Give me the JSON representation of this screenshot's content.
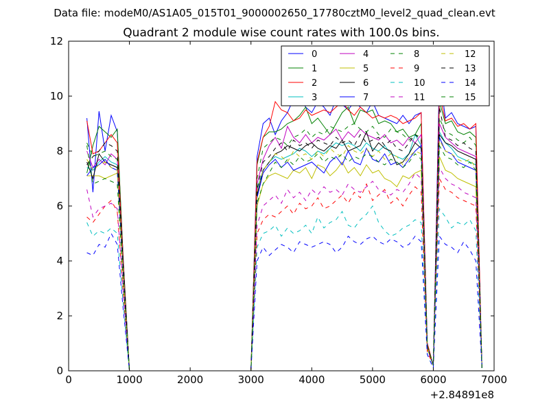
{
  "chart_data": {
    "type": "line",
    "suptitle": "Data file: modeM0/AS1A05_015T01_9000002650_17780cztM0_level2_quad_clean.evt",
    "title": "Quadrant 2 module wise count rates with 100.0s bins.",
    "xlabel": "",
    "ylabel": "",
    "x_offset_label": "+2.84891e8",
    "xlim": [
      0,
      7000
    ],
    "ylim": [
      0,
      12
    ],
    "xticks": [
      0,
      1000,
      2000,
      3000,
      4000,
      5000,
      6000,
      7000
    ],
    "yticks": [
      0,
      2,
      4,
      6,
      8,
      10,
      12
    ],
    "legend_location": "upper right",
    "legend_columns": 4,
    "x": [
      300,
      400,
      500,
      600,
      700,
      800,
      900,
      1000,
      1100,
      1200,
      1300,
      1400,
      1500,
      1600,
      1700,
      1800,
      1900,
      2000,
      2100,
      2200,
      2300,
      2400,
      2500,
      2600,
      2700,
      2800,
      2900,
      3000,
      3100,
      3200,
      3300,
      3400,
      3500,
      3600,
      3700,
      3800,
      3900,
      4000,
      4100,
      4200,
      4300,
      4400,
      4500,
      4600,
      4700,
      4800,
      4900,
      5000,
      5100,
      5200,
      5300,
      5400,
      5500,
      5600,
      5700,
      5800,
      5900,
      6000,
      6100,
      6200,
      6300,
      6400,
      6500,
      6600,
      6700,
      6800
    ],
    "series": [
      {
        "name": "0",
        "color": "#0000ff",
        "dash": "solid",
        "values": [
          9.2,
          6.5,
          9.45,
          8.0,
          9.3,
          8.7,
          4.0,
          0,
          0,
          0,
          0,
          0,
          0,
          0,
          0,
          0,
          0,
          0,
          0,
          0,
          0,
          0,
          0,
          0,
          0,
          0,
          0,
          0,
          7.8,
          9.0,
          9.2,
          8.6,
          9.1,
          9.4,
          9.9,
          10.0,
          9.6,
          9.4,
          9.8,
          9.6,
          9.3,
          9.9,
          9.7,
          9.5,
          9.8,
          9.6,
          9.4,
          9.8,
          9.3,
          9.2,
          9.1,
          9.0,
          9.3,
          9.0,
          9.3,
          9.4,
          1.0,
          0.2,
          10.8,
          9.2,
          9.4,
          9.0,
          8.9,
          8.8,
          8.9,
          0.1
        ]
      },
      {
        "name": "1",
        "color": "#008000",
        "dash": "solid",
        "values": [
          7.2,
          8.2,
          8.9,
          8.7,
          8.5,
          8.8,
          4.0,
          0,
          0,
          0,
          0,
          0,
          0,
          0,
          0,
          0,
          0,
          0,
          0,
          0,
          0,
          0,
          0,
          0,
          0,
          0,
          0,
          0,
          7.5,
          8.5,
          8.7,
          8.7,
          8.8,
          9.0,
          9.1,
          9.3,
          9.6,
          9.0,
          9.2,
          8.9,
          8.6,
          9.0,
          9.4,
          9.6,
          9.0,
          9.5,
          9.4,
          9.5,
          9.0,
          9.1,
          9.0,
          8.7,
          8.8,
          8.5,
          8.6,
          9.0,
          1.0,
          0.2,
          9.8,
          9.0,
          9.1,
          8.7,
          8.6,
          8.7,
          8.5,
          0.1
        ]
      },
      {
        "name": "2",
        "color": "#ff0000",
        "dash": "solid",
        "values": [
          9.1,
          7.9,
          8.0,
          8.3,
          8.6,
          8.3,
          3.9,
          0,
          0,
          0,
          0,
          0,
          0,
          0,
          0,
          0,
          0,
          0,
          0,
          0,
          0,
          0,
          0,
          0,
          0,
          0,
          0,
          0,
          7.6,
          8.5,
          8.9,
          9.8,
          9.5,
          9.4,
          9.1,
          9.2,
          9.5,
          9.3,
          9.4,
          9.5,
          9.4,
          9.6,
          9.8,
          9.5,
          9.3,
          9.6,
          9.4,
          9.2,
          9.3,
          9.2,
          9.3,
          9.2,
          9.0,
          9.1,
          9.2,
          9.4,
          1.0,
          0.2,
          10.1,
          9.1,
          9.2,
          8.9,
          9.0,
          8.8,
          9.0,
          0.1
        ]
      },
      {
        "name": "3",
        "color": "#00bfbf",
        "dash": "solid",
        "values": [
          7.4,
          7.3,
          7.6,
          7.8,
          7.6,
          7.5,
          3.6,
          0,
          0,
          0,
          0,
          0,
          0,
          0,
          0,
          0,
          0,
          0,
          0,
          0,
          0,
          0,
          0,
          0,
          0,
          0,
          0,
          0,
          6.6,
          7.3,
          7.6,
          7.8,
          7.7,
          7.8,
          7.9,
          8.1,
          8.0,
          7.8,
          8.0,
          7.9,
          8.1,
          8.3,
          8.2,
          8.3,
          8.2,
          8.0,
          8.3,
          8.1,
          8.0,
          8.2,
          7.9,
          7.8,
          7.7,
          7.9,
          8.6,
          8.2,
          0.9,
          0.2,
          8.7,
          8.3,
          8.1,
          7.8,
          7.7,
          7.6,
          7.5,
          0.1
        ]
      },
      {
        "name": "4",
        "color": "#bf00bf",
        "dash": "solid",
        "values": [
          8.0,
          7.4,
          7.7,
          7.5,
          7.9,
          7.7,
          3.7,
          0,
          0,
          0,
          0,
          0,
          0,
          0,
          0,
          0,
          0,
          0,
          0,
          0,
          0,
          0,
          0,
          0,
          0,
          0,
          0,
          0,
          6.8,
          7.7,
          8.2,
          8.5,
          8.1,
          8.9,
          8.5,
          8.3,
          8.6,
          8.3,
          8.5,
          8.4,
          8.6,
          8.8,
          8.4,
          8.7,
          8.5,
          8.8,
          8.6,
          8.5,
          8.4,
          8.6,
          8.3,
          8.4,
          8.2,
          8.5,
          8.3,
          8.6,
          0.9,
          0.2,
          9.0,
          8.5,
          8.3,
          8.1,
          8.0,
          7.9,
          7.8,
          0.1
        ]
      },
      {
        "name": "5",
        "color": "#bfbf00",
        "dash": "solid",
        "values": [
          7.1,
          7.1,
          7.1,
          7.0,
          7.1,
          7.2,
          3.4,
          0,
          0,
          0,
          0,
          0,
          0,
          0,
          0,
          0,
          0,
          0,
          0,
          0,
          0,
          0,
          0,
          0,
          0,
          0,
          0,
          0,
          6.0,
          6.8,
          7.1,
          7.2,
          7.1,
          7.0,
          7.3,
          7.2,
          7.4,
          7.0,
          7.5,
          7.4,
          7.1,
          7.3,
          7.6,
          7.2,
          7.4,
          7.1,
          7.5,
          7.2,
          7.3,
          7.0,
          6.9,
          6.7,
          7.1,
          7.0,
          7.2,
          7.3,
          0.8,
          0.2,
          7.8,
          7.3,
          7.2,
          7.0,
          6.9,
          6.8,
          6.7,
          0.1
        ]
      },
      {
        "name": "6",
        "color": "#000000",
        "dash": "solid",
        "values": [
          7.6,
          7.0,
          7.9,
          7.6,
          7.5,
          7.4,
          3.6,
          0,
          0,
          0,
          0,
          0,
          0,
          0,
          0,
          0,
          0,
          0,
          0,
          0,
          0,
          0,
          0,
          0,
          0,
          0,
          0,
          0,
          6.4,
          7.3,
          7.6,
          7.9,
          8.0,
          8.2,
          8.1,
          8.0,
          8.2,
          8.3,
          8.1,
          8.0,
          8.2,
          8.1,
          8.4,
          8.0,
          8.1,
          8.2,
          8.7,
          8.0,
          8.3,
          8.1,
          8.0,
          7.5,
          7.6,
          7.9,
          8.3,
          8.1,
          0.9,
          0.2,
          8.6,
          8.3,
          8.2,
          8.0,
          7.9,
          7.8,
          7.7,
          0.1
        ]
      },
      {
        "name": "7",
        "color": "#0000ff",
        "dash": "solid",
        "values": [
          7.1,
          7.4,
          7.5,
          7.7,
          7.4,
          7.3,
          3.5,
          0,
          0,
          0,
          0,
          0,
          0,
          0,
          0,
          0,
          0,
          0,
          0,
          0,
          0,
          0,
          0,
          0,
          0,
          0,
          0,
          0,
          6.3,
          7.2,
          7.5,
          7.7,
          7.4,
          7.6,
          7.3,
          7.4,
          7.5,
          7.6,
          7.4,
          7.2,
          7.6,
          7.8,
          7.5,
          8.0,
          7.6,
          7.5,
          8.1,
          7.7,
          7.6,
          7.9,
          7.5,
          7.6,
          7.4,
          7.7,
          8.0,
          8.2,
          0.9,
          0.2,
          8.5,
          8.0,
          7.9,
          7.6,
          7.5,
          7.4,
          7.3,
          0.1
        ]
      },
      {
        "name": "8",
        "color": "#008000",
        "dash": "dashed",
        "values": [
          8.3,
          7.8,
          7.9,
          8.0,
          7.8,
          7.7,
          3.7,
          0,
          0,
          0,
          0,
          0,
          0,
          0,
          0,
          0,
          0,
          0,
          0,
          0,
          0,
          0,
          0,
          0,
          0,
          0,
          0,
          0,
          7.0,
          8.1,
          8.3,
          8.5,
          8.4,
          8.2,
          8.5,
          8.6,
          8.8,
          8.5,
          8.7,
          8.6,
          8.9,
          8.8,
          8.7,
          8.9,
          9.0,
          8.8,
          8.7,
          8.9,
          8.6,
          8.5,
          8.8,
          8.7,
          8.6,
          8.4,
          8.6,
          8.5,
          0.9,
          0.2,
          9.2,
          8.7,
          8.6,
          8.4,
          8.3,
          8.5,
          8.2,
          0.1
        ]
      },
      {
        "name": "9",
        "color": "#ff0000",
        "dash": "dashed",
        "values": [
          5.6,
          5.4,
          5.7,
          6.0,
          6.2,
          5.8,
          2.8,
          0,
          0,
          0,
          0,
          0,
          0,
          0,
          0,
          0,
          0,
          0,
          0,
          0,
          0,
          0,
          0,
          0,
          0,
          0,
          0,
          0,
          5.0,
          5.5,
          5.7,
          5.6,
          5.8,
          6.0,
          5.7,
          6.1,
          5.9,
          6.0,
          6.3,
          5.9,
          6.0,
          6.2,
          6.4,
          6.1,
          6.5,
          6.3,
          6.8,
          6.2,
          6.4,
          6.6,
          6.1,
          6.3,
          6.0,
          6.4,
          6.7,
          6.5,
          0.7,
          0.2,
          7.0,
          6.6,
          6.5,
          6.3,
          6.2,
          6.1,
          6.0,
          0.1
        ]
      },
      {
        "name": "10",
        "color": "#00bfbf",
        "dash": "dashed",
        "values": [
          5.4,
          4.9,
          5.1,
          5.0,
          5.2,
          5.0,
          2.4,
          0,
          0,
          0,
          0,
          0,
          0,
          0,
          0,
          0,
          0,
          0,
          0,
          0,
          0,
          0,
          0,
          0,
          0,
          0,
          0,
          0,
          4.5,
          5.0,
          5.1,
          5.3,
          4.9,
          5.2,
          5.0,
          5.1,
          5.3,
          5.0,
          5.6,
          5.2,
          5.4,
          5.5,
          5.8,
          5.3,
          5.2,
          5.5,
          5.7,
          6.0,
          5.4,
          5.1,
          4.9,
          5.0,
          5.2,
          5.3,
          5.5,
          5.4,
          0.6,
          0.1,
          5.9,
          5.6,
          5.2,
          5.4,
          5.3,
          5.5,
          5.1,
          0.1
        ]
      },
      {
        "name": "11",
        "color": "#bf00bf",
        "dash": "dashed",
        "values": [
          6.6,
          5.6,
          5.9,
          6.0,
          6.1,
          5.9,
          2.9,
          0,
          0,
          0,
          0,
          0,
          0,
          0,
          0,
          0,
          0,
          0,
          0,
          0,
          0,
          0,
          0,
          0,
          0,
          0,
          0,
          0,
          5.3,
          6.0,
          6.2,
          6.4,
          6.1,
          6.6,
          6.3,
          6.5,
          6.2,
          6.6,
          6.4,
          6.7,
          6.5,
          6.6,
          6.4,
          6.8,
          6.6,
          6.5,
          6.7,
          6.9,
          6.6,
          6.5,
          6.4,
          6.6,
          6.5,
          6.8,
          7.2,
          7.0,
          0.8,
          0.2,
          7.4,
          7.0,
          6.8,
          6.7,
          6.5,
          6.4,
          6.3,
          0.1
        ]
      },
      {
        "name": "12",
        "color": "#bfbf00",
        "dash": "dashed",
        "values": [
          7.7,
          7.3,
          7.5,
          7.6,
          7.4,
          7.3,
          3.5,
          0,
          0,
          0,
          0,
          0,
          0,
          0,
          0,
          0,
          0,
          0,
          0,
          0,
          0,
          0,
          0,
          0,
          0,
          0,
          0,
          0,
          6.5,
          7.3,
          7.6,
          7.9,
          7.8,
          7.6,
          8.0,
          7.8,
          7.9,
          7.7,
          8.0,
          7.8,
          8.1,
          7.9,
          7.8,
          8.2,
          8.0,
          7.9,
          8.1,
          7.8,
          8.0,
          7.7,
          7.9,
          7.8,
          7.5,
          7.8,
          8.0,
          7.9,
          0.9,
          0.2,
          8.4,
          8.0,
          7.9,
          7.7,
          7.6,
          7.7,
          7.4,
          0.1
        ]
      },
      {
        "name": "13",
        "color": "#000000",
        "dash": "dashed",
        "values": [
          7.5,
          7.8,
          8.0,
          8.3,
          8.2,
          8.0,
          3.8,
          0,
          0,
          0,
          0,
          0,
          0,
          0,
          0,
          0,
          0,
          0,
          0,
          0,
          0,
          0,
          0,
          0,
          0,
          0,
          0,
          0,
          6.6,
          7.6,
          7.8,
          8.1,
          8.3,
          8.0,
          8.4,
          8.2,
          8.3,
          8.1,
          8.4,
          8.3,
          8.2,
          8.5,
          8.3,
          8.4,
          8.2,
          8.6,
          8.3,
          8.4,
          8.5,
          8.2,
          8.4,
          8.1,
          8.0,
          8.3,
          8.6,
          8.4,
          0.9,
          0.2,
          9.6,
          8.5,
          8.4,
          8.2,
          8.3,
          8.1,
          8.0,
          0.1
        ]
      },
      {
        "name": "14",
        "color": "#0000ff",
        "dash": "dashed",
        "values": [
          4.3,
          4.2,
          4.6,
          4.5,
          5.0,
          4.6,
          2.2,
          0,
          0,
          0,
          0,
          0,
          0,
          0,
          0,
          0,
          0,
          0,
          0,
          0,
          0,
          0,
          0,
          0,
          0,
          0,
          0,
          0,
          4.0,
          4.5,
          4.2,
          4.4,
          4.6,
          4.5,
          4.3,
          4.7,
          4.6,
          4.5,
          4.6,
          4.7,
          4.6,
          4.3,
          4.5,
          4.9,
          4.7,
          4.6,
          4.8,
          4.9,
          4.7,
          4.6,
          4.8,
          4.7,
          4.5,
          4.6,
          4.9,
          4.7,
          0.6,
          0.1,
          4.9,
          4.6,
          4.5,
          4.3,
          4.7,
          4.4,
          4.0,
          0.1
        ]
      },
      {
        "name": "15",
        "color": "#008000",
        "dash": "dashed",
        "values": [
          8.2,
          6.8,
          6.9,
          7.0,
          6.9,
          6.8,
          3.2,
          0,
          0,
          0,
          0,
          0,
          0,
          0,
          0,
          0,
          0,
          0,
          0,
          0,
          0,
          0,
          0,
          0,
          0,
          0,
          0,
          0,
          6.1,
          6.8,
          7.2,
          7.6,
          7.4,
          7.7,
          7.5,
          7.8,
          7.6,
          7.7,
          7.9,
          7.6,
          7.8,
          7.7,
          7.9,
          7.6,
          7.8,
          7.7,
          7.9,
          7.8,
          7.6,
          7.5,
          7.7,
          7.6,
          7.4,
          7.6,
          7.9,
          7.7,
          0.9,
          0.2,
          8.2,
          7.8,
          7.7,
          7.5,
          7.4,
          7.6,
          7.3,
          0.1
        ]
      }
    ]
  }
}
